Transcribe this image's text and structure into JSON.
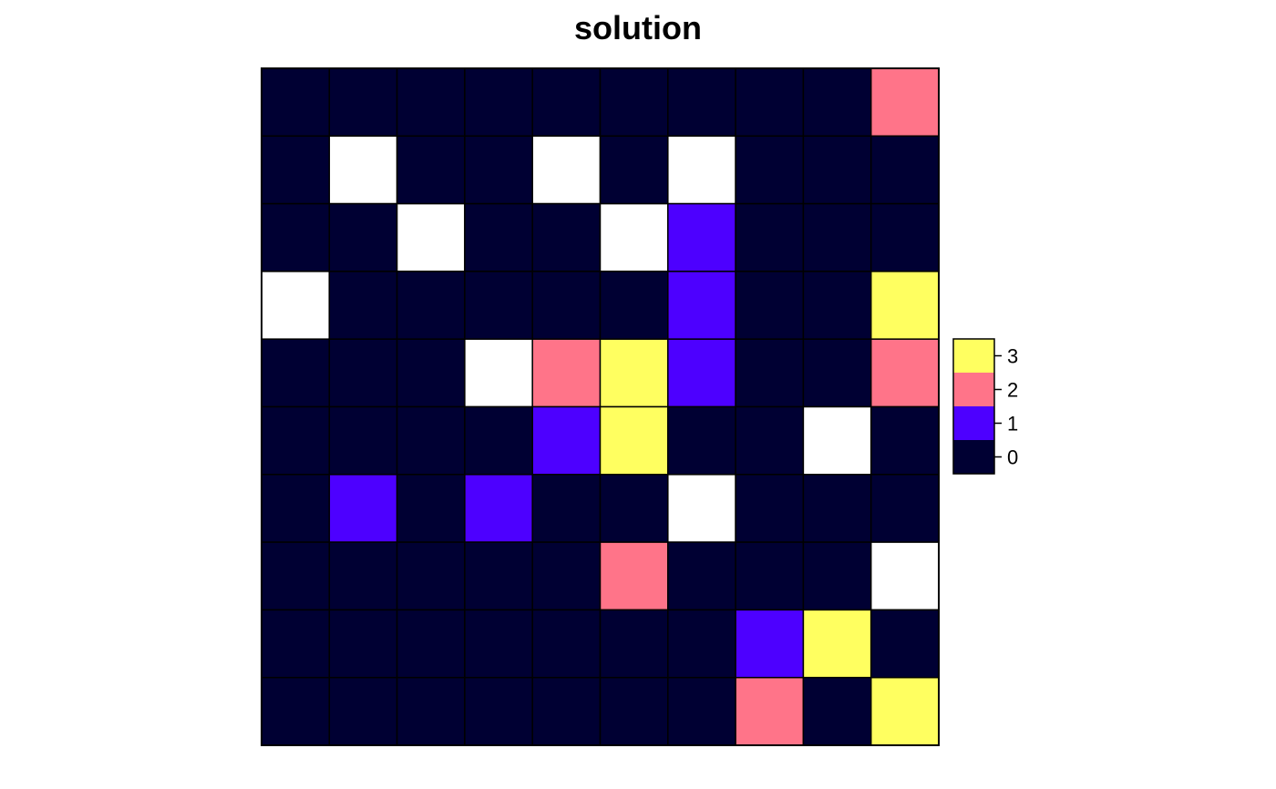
{
  "chart_data": {
    "type": "heatmap",
    "title": "solution",
    "xlabel": "",
    "ylabel": "",
    "grid": true,
    "legend_position": "right",
    "legend": {
      "values": [
        3,
        2,
        1,
        0
      ],
      "labels": [
        "3",
        "2",
        "1",
        "0"
      ],
      "colors": [
        "#FFFF60",
        "#FF7489",
        "#4D00FF",
        "#000033"
      ]
    },
    "na_color": "#FFFFFF",
    "rows": [
      [
        0,
        0,
        0,
        0,
        0,
        0,
        0,
        0,
        0,
        2
      ],
      [
        0,
        null,
        0,
        0,
        null,
        0,
        null,
        0,
        0,
        0
      ],
      [
        0,
        0,
        null,
        0,
        0,
        null,
        1,
        0,
        0,
        0
      ],
      [
        null,
        0,
        0,
        0,
        0,
        0,
        1,
        0,
        0,
        3
      ],
      [
        0,
        0,
        0,
        null,
        2,
        3,
        1,
        0,
        0,
        2
      ],
      [
        0,
        0,
        0,
        0,
        1,
        3,
        0,
        0,
        null,
        0
      ],
      [
        0,
        1,
        0,
        1,
        0,
        0,
        null,
        0,
        0,
        0
      ],
      [
        0,
        0,
        0,
        0,
        0,
        2,
        0,
        0,
        0,
        null
      ],
      [
        0,
        0,
        0,
        0,
        0,
        0,
        0,
        1,
        3,
        0
      ],
      [
        0,
        0,
        0,
        0,
        0,
        0,
        0,
        2,
        0,
        3
      ]
    ]
  }
}
